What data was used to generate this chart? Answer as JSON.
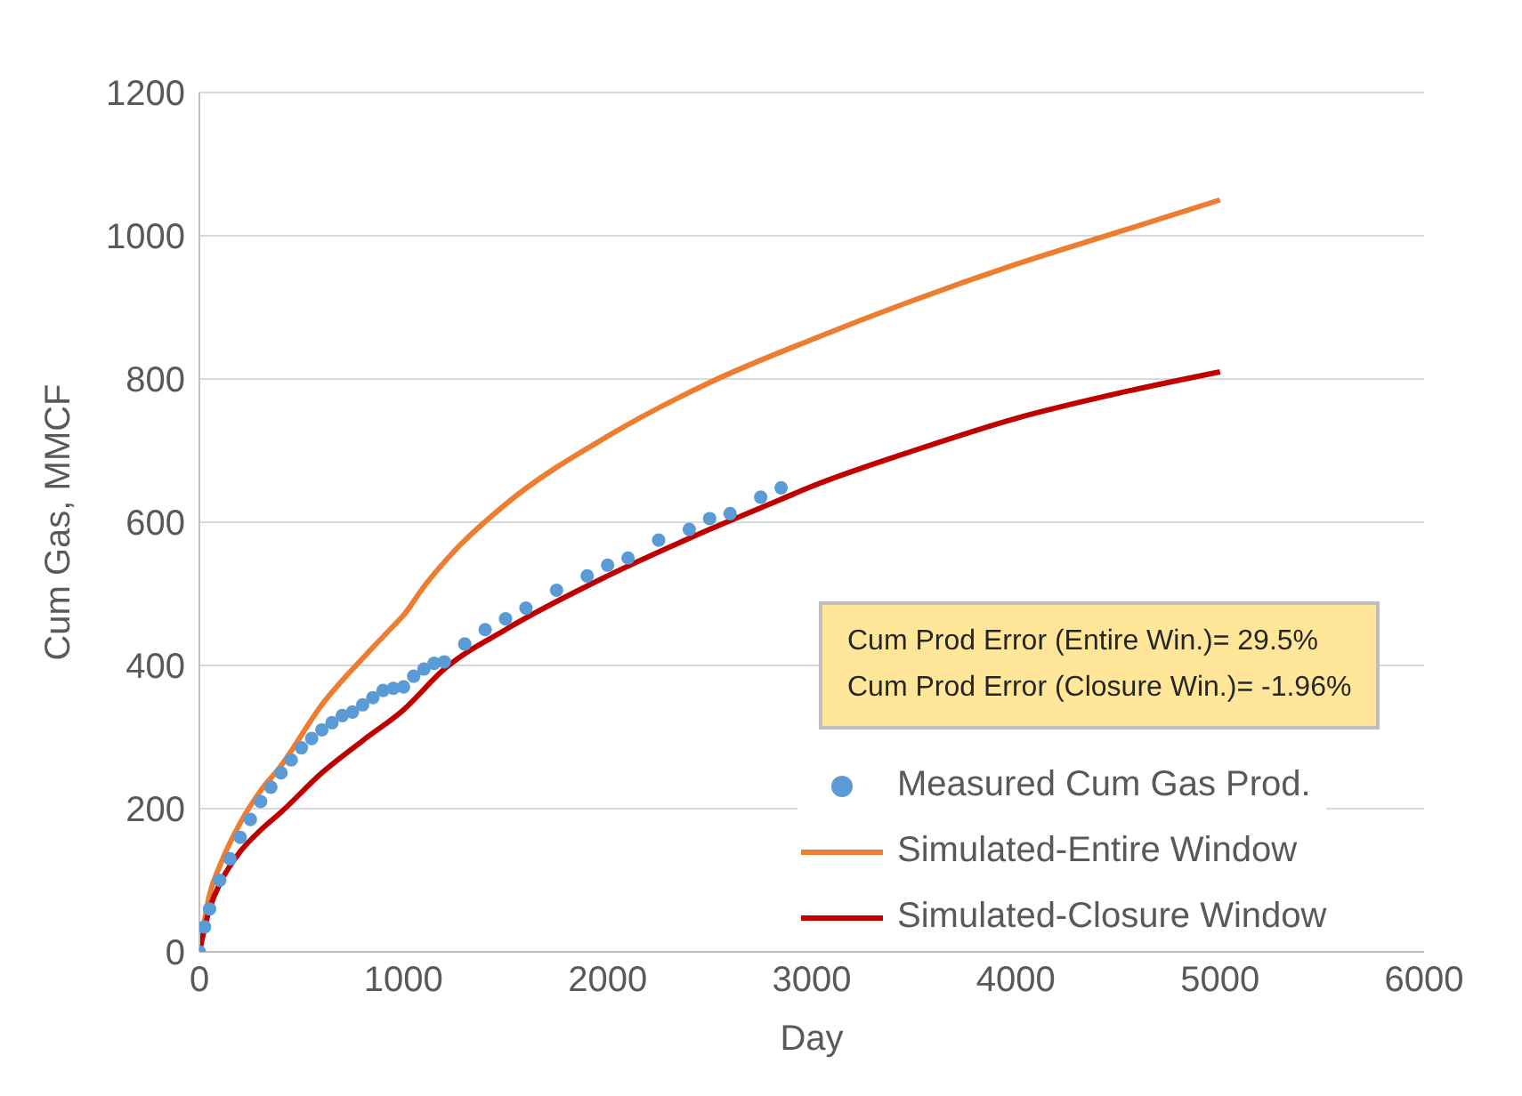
{
  "chart_data": {
    "type": "line",
    "xlabel": "Day",
    "ylabel": "Cum Gas, MMCF",
    "xlim": [
      0,
      6000
    ],
    "xticks": [
      0,
      1000,
      2000,
      3000,
      4000,
      5000,
      6000
    ],
    "ylim": [
      0,
      1200
    ],
    "yticks": [
      0,
      200,
      400,
      600,
      800,
      1000,
      1200
    ],
    "grid": "y",
    "legend": "bottom right",
    "annotations": [
      "Cum Prod Error (Entire Win.)= 29.5%",
      "Cum Prod Error (Closure Win.)= -1.96%"
    ],
    "series": [
      {
        "name": "Measured Cum Gas Prod.",
        "type": "scatter",
        "marker": "circle",
        "color": "#5b9bd5",
        "x": [
          0,
          25,
          50,
          100,
          150,
          200,
          250,
          300,
          350,
          400,
          450,
          500,
          550,
          600,
          650,
          700,
          750,
          800,
          850,
          900,
          950,
          1000,
          1050,
          1100,
          1150,
          1200,
          1300,
          1400,
          1500,
          1600,
          1750,
          1900,
          2000,
          2100,
          2250,
          2400,
          2500,
          2600,
          2750,
          2850
        ],
        "values": [
          0,
          35,
          60,
          100,
          130,
          160,
          185,
          210,
          230,
          250,
          268,
          285,
          298,
          310,
          320,
          330,
          335,
          345,
          355,
          365,
          368,
          370,
          385,
          395,
          403,
          405,
          430,
          450,
          465,
          480,
          505,
          525,
          540,
          550,
          575,
          590,
          605,
          612,
          635,
          648
        ]
      },
      {
        "name": "Simulated-Entire Window",
        "color": "#ed7d31",
        "x": [
          0,
          50,
          100,
          200,
          300,
          400,
          420,
          600,
          800,
          950,
          1000,
          1100,
          1250,
          1500,
          2000,
          2500,
          3000,
          3500,
          4000,
          4500,
          5000
        ],
        "values": [
          0,
          80,
          120,
          180,
          225,
          260,
          268,
          345,
          410,
          455,
          470,
          510,
          560,
          625,
          720,
          795,
          855,
          910,
          960,
          1005,
          1050
        ]
      },
      {
        "name": "Simulated-Closure Window",
        "color": "#c00000",
        "x": [
          0,
          50,
          100,
          200,
          300,
          400,
          600,
          800,
          1000,
          1200,
          1500,
          2000,
          2500,
          2850,
          3000,
          3500,
          4000,
          4500,
          5000
        ],
        "values": [
          0,
          60,
          95,
          140,
          170,
          195,
          250,
          295,
          338,
          395,
          450,
          525,
          590,
          632,
          650,
          700,
          745,
          780,
          810
        ]
      }
    ]
  }
}
